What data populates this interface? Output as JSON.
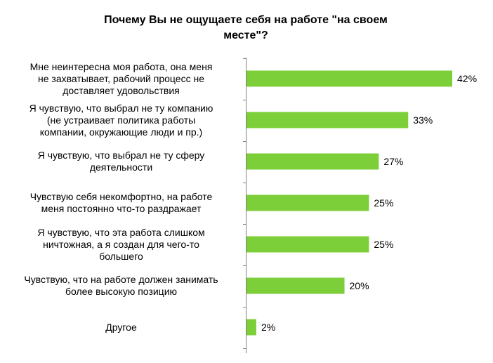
{
  "chart_data": {
    "type": "bar",
    "orientation": "horizontal",
    "title": "Почему Вы не ощущаете себя на работе \"на своем\nместе\"?",
    "categories": [
      "Мне неинтересна  моя работа, она меня\nне захватывает, рабочий процесс не\nдоставляет удовольствия",
      "Я чувствую, что выбрал не ту компанию\n(не устраивает политика  работы\nкомпании, окружающие  люди и пр.)",
      "Я чувствую, что выбрал не ту сферу\nдеятельности",
      "Чувствую себя некомфортно, на работе\nменя постоянно что-то раздражает",
      "Я чувствую, что эта работа слишком\nничтожная,  а я создан для чего-то\nбольшего",
      "Чувствую,  что на работе должен  занимать\nболее  высокую позицию",
      "Другое"
    ],
    "values": [
      42,
      33,
      27,
      25,
      25,
      20,
      2
    ],
    "data_labels": [
      "42%",
      "33%",
      "27%",
      "25%",
      "25%",
      "20%",
      "2%"
    ],
    "bar_color": "#7dcf3a",
    "xlim": [
      0,
      42
    ],
    "grid": false,
    "legend": "none"
  }
}
